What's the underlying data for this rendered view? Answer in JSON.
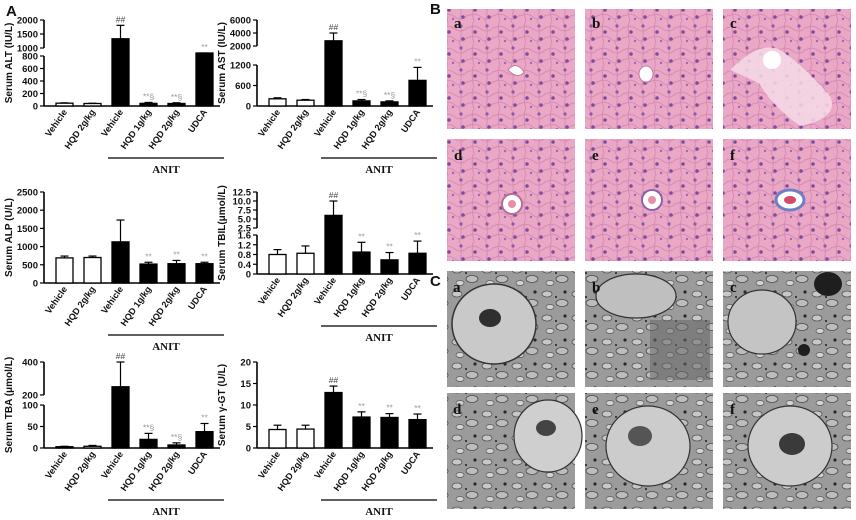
{
  "panel_labels": {
    "A": "A",
    "B": "B",
    "C": "C"
  },
  "colors": {
    "filled_bar": "#000000",
    "open_bar": "#ffffff",
    "annotation_dark": "#444444",
    "annotation_grey": "#9a9a9a",
    "he_background": "#e9a6c4",
    "em_background": "#9a9a9a"
  },
  "chart_data": [
    {
      "type": "bar",
      "ylabel": "Serum ALT (IU/L)",
      "yticks": [
        "0",
        "200",
        "400",
        "600",
        "800",
        "1000",
        "1500",
        "2000"
      ],
      "axis_break": true,
      "categories": [
        "Vehicle",
        "HQD 2g/kg",
        "Vehicle",
        "HQD 1g/kg",
        "HQD 2g/kg",
        "UDCA"
      ],
      "group_label": "ANIT",
      "values": [
        45,
        40,
        1330,
        42,
        40,
        900
      ],
      "errors": [
        6,
        4,
        480,
        15,
        12,
        90
      ],
      "annotations": [
        "",
        "",
        "##",
        "**§",
        "**§",
        "**"
      ]
    },
    {
      "type": "bar",
      "ylabel": "Serum AST (IU/L)",
      "yticks": [
        "0",
        "600",
        "1200",
        "2000",
        "4000",
        "6000"
      ],
      "axis_break": true,
      "categories": [
        "Vehicle",
        "HQD 2g/kg",
        "Vehicle",
        "HQD 1g/kg",
        "HQD 2g/kg",
        "UDCA"
      ],
      "group_label": "ANIT",
      "values": [
        210,
        170,
        2800,
        150,
        120,
        750
      ],
      "errors": [
        30,
        20,
        1200,
        40,
        30,
        380
      ],
      "annotations": [
        "",
        "",
        "##",
        "**§",
        "**§",
        "**"
      ]
    },
    {
      "type": "bar",
      "ylabel": "Serum ALP (U/L)",
      "yticks": [
        "0",
        "500",
        "1000",
        "1500",
        "2000",
        "2500"
      ],
      "categories": [
        "Vehicle",
        "HQD 2g/kg",
        "Vehicle",
        "HQD 1g/kg",
        "HQD 2g/kg",
        "UDCA"
      ],
      "group_label": "ANIT",
      "values": [
        690,
        700,
        1130,
        520,
        530,
        530
      ],
      "errors": [
        50,
        40,
        600,
        50,
        90,
        40
      ],
      "annotations": [
        "",
        "",
        "",
        "**",
        "**",
        "**"
      ]
    },
    {
      "type": "bar",
      "ylabel": "Serum TBIL(μmol/L)",
      "yticks": [
        "0",
        "0.4",
        "0.8",
        "1.2",
        "1.6",
        "2.5",
        "5.0",
        "7.5",
        "10.0",
        "12.5"
      ],
      "axis_break": true,
      "categories": [
        "Vehicle",
        "HQD 2g/kg",
        "Vehicle",
        "HQD 1g/kg",
        "HQD 2g/kg",
        "UDCA"
      ],
      "group_label": "ANIT",
      "values": [
        0.8,
        0.85,
        6.0,
        0.9,
        0.58,
        0.85
      ],
      "errors": [
        0.2,
        0.3,
        4.0,
        0.4,
        0.3,
        0.5
      ],
      "annotations": [
        "",
        "",
        "##",
        "**",
        "**",
        "**"
      ]
    },
    {
      "type": "bar",
      "ylabel": "Serum TBA (μmol/L)",
      "yticks": [
        "0",
        "50",
        "100",
        "200",
        "400"
      ],
      "axis_break": true,
      "categories": [
        "Vehicle",
        "HQD 2g/kg",
        "Vehicle",
        "HQD 1g/kg",
        "HQD 2g/kg",
        "UDCA"
      ],
      "group_label": "ANIT",
      "values": [
        3,
        4,
        250,
        20,
        7,
        38
      ],
      "errors": [
        1,
        2,
        150,
        14,
        5,
        19
      ],
      "annotations": [
        "",
        "",
        "##",
        "**§",
        "**§",
        "**"
      ]
    },
    {
      "type": "bar",
      "ylabel": "Serum γ-GT (U/L)",
      "yticks": [
        "0",
        "5",
        "10",
        "15",
        "20"
      ],
      "categories": [
        "Vehicle",
        "HQD 2g/kg",
        "Vehicle",
        "HQD 1g/kg",
        "HQD 2g/kg",
        "UDCA"
      ],
      "group_label": "ANIT",
      "values": [
        4.3,
        4.4,
        12.9,
        7.2,
        7.1,
        6.6
      ],
      "errors": [
        1.0,
        0.9,
        1.5,
        1.2,
        0.9,
        1.3
      ],
      "annotations": [
        "",
        "",
        "##",
        "**",
        "**",
        "**"
      ]
    }
  ],
  "histology_B": {
    "sublabels": [
      "a",
      "b",
      "c",
      "d",
      "e",
      "f"
    ]
  },
  "electron_C": {
    "sublabels": [
      "a",
      "b",
      "c",
      "d",
      "e",
      "f"
    ]
  }
}
